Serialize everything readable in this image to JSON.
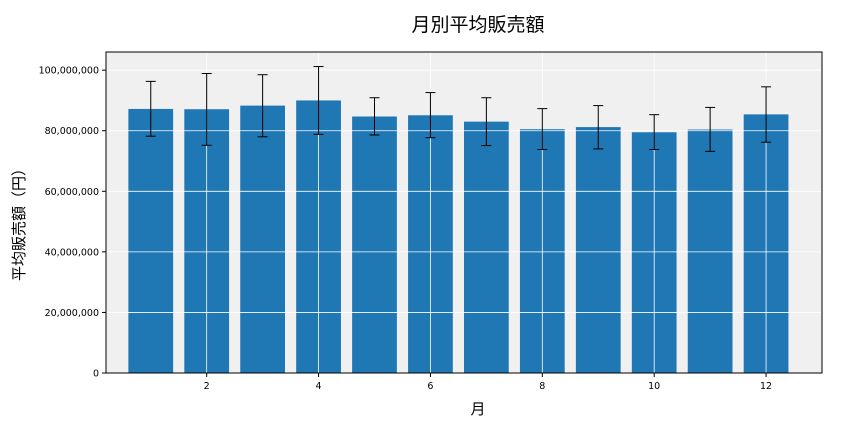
{
  "chart_data": {
    "type": "bar",
    "title": "月別平均販売額",
    "xlabel": "月",
    "ylabel": "平均販売額（円）",
    "x": [
      1,
      2,
      3,
      4,
      5,
      6,
      7,
      8,
      9,
      10,
      11,
      12
    ],
    "values": [
      87200000,
      87100000,
      88300000,
      90000000,
      84700000,
      85100000,
      83000000,
      80500000,
      81200000,
      79500000,
      80400000,
      85400000
    ],
    "error_low": [
      78200000,
      75200000,
      78000000,
      78800000,
      78600000,
      77700000,
      75100000,
      73800000,
      74000000,
      73800000,
      73200000,
      76200000
    ],
    "error_high": [
      96300000,
      98900000,
      98500000,
      101200000,
      90900000,
      92600000,
      90900000,
      87300000,
      88300000,
      85300000,
      87700000,
      94500000
    ],
    "xticks": [
      "2",
      "4",
      "6",
      "8",
      "10",
      "12"
    ],
    "xtick_values": [
      2,
      4,
      6,
      8,
      10,
      12
    ],
    "yticks": [
      "0",
      "20,000,000",
      "40,000,000",
      "60,000,000",
      "80,000,000",
      "100,000,000"
    ],
    "ytick_values": [
      0,
      20000000,
      40000000,
      60000000,
      80000000,
      100000000
    ],
    "xlim": [
      0.2,
      13.0
    ],
    "ylim": [
      0,
      106000000
    ],
    "grid": true,
    "colors": {
      "bar": "#1f77b4",
      "plot_bg": "#f0f0f0",
      "grid": "#ffffff",
      "error": "#000000"
    }
  }
}
